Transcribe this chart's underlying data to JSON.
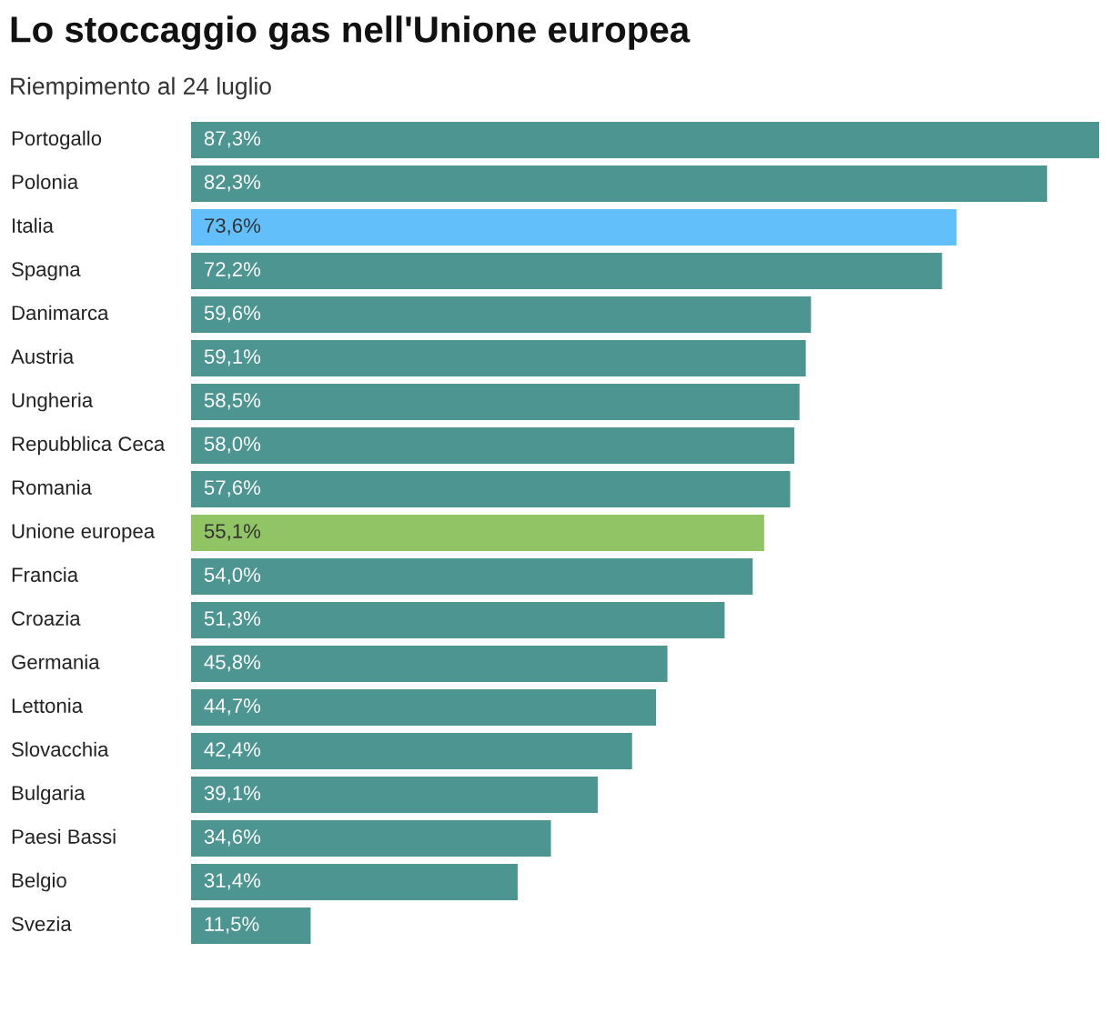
{
  "chart_data": {
    "type": "bar",
    "orientation": "horizontal",
    "title": "Lo stoccaggio gas nell'Unione europea",
    "subtitle": "Riempimento al 24 luglio",
    "categories": [
      "Portogallo",
      "Polonia",
      "Italia",
      "Spagna",
      "Danimarca",
      "Austria",
      "Ungheria",
      "Repubblica Ceca",
      "Romania",
      "Unione europea",
      "Francia",
      "Croazia",
      "Germania",
      "Lettonia",
      "Slovacchia",
      "Bulgaria",
      "Paesi Bassi",
      "Belgio",
      "Svezia"
    ],
    "values": [
      87.3,
      82.3,
      73.6,
      72.2,
      59.6,
      59.1,
      58.5,
      58.0,
      57.6,
      55.1,
      54.0,
      51.3,
      45.8,
      44.7,
      42.4,
      39.1,
      34.6,
      31.4,
      11.5
    ],
    "value_labels": [
      "87,3%",
      "82,3%",
      "73,6%",
      "72,2%",
      "59,6%",
      "59,1%",
      "58,5%",
      "58,0%",
      "57,6%",
      "55,1%",
      "54,0%",
      "51,3%",
      "45,8%",
      "44,7%",
      "42,4%",
      "39,1%",
      "34,6%",
      "31,4%",
      "11,5%"
    ],
    "colors": [
      "#4c9591",
      "#4c9591",
      "#63bffa",
      "#4c9591",
      "#4c9591",
      "#4c9591",
      "#4c9591",
      "#4c9591",
      "#4c9591",
      "#91c465",
      "#4c9591",
      "#4c9591",
      "#4c9591",
      "#4c9591",
      "#4c9591",
      "#4c9591",
      "#4c9591",
      "#4c9591",
      "#4c9591"
    ]
  }
}
